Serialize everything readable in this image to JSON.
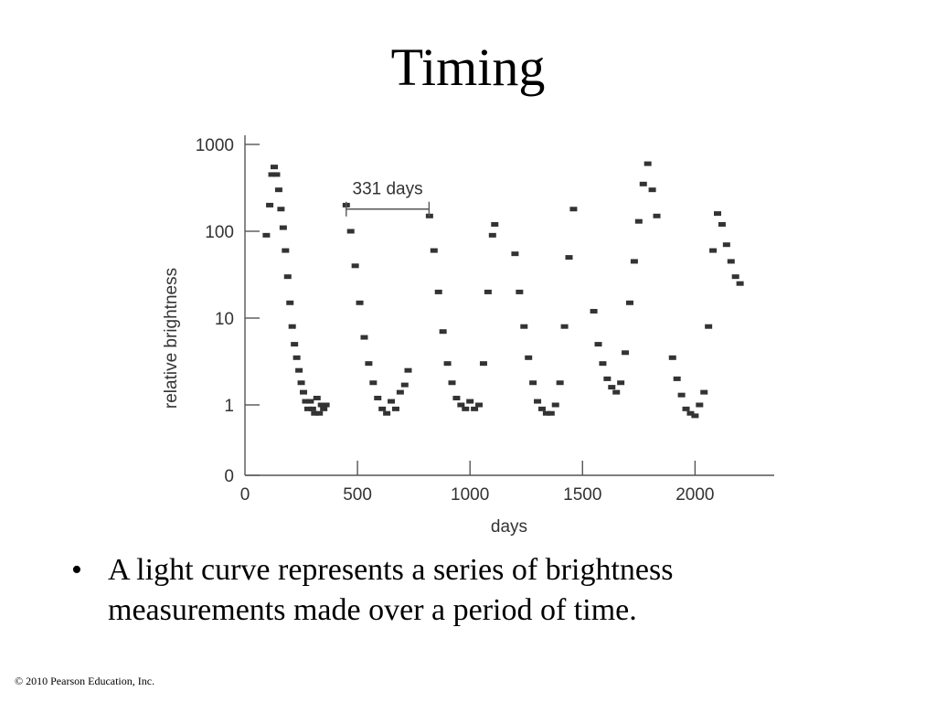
{
  "slide": {
    "title": "Timing",
    "bullet_marker": "•",
    "bullet": "A light curve represents a series of brightness measurements made over a period of time.",
    "copyright": "© 2010 Pearson Education, Inc."
  },
  "chart_data": {
    "type": "scatter",
    "title": "",
    "xlabel": "days",
    "ylabel": "relative brightness",
    "xlim": [
      0,
      2350
    ],
    "xticks": [
      0,
      500,
      1000,
      1500,
      2000
    ],
    "xtick_labels": [
      "0",
      "500",
      "1000",
      "1500",
      "2000"
    ],
    "y_scale": "log",
    "yticks": [
      0,
      1,
      10,
      100,
      1000
    ],
    "ytick_labels": [
      "0",
      "1",
      "10",
      "100",
      "1000"
    ],
    "grid": false,
    "marker_color": "#333333",
    "annotation": {
      "label": "331 days",
      "x_start": 450,
      "x_end": 818,
      "y": 180
    },
    "series": [
      {
        "x": [
          95,
          110,
          120,
          130,
          140,
          150,
          160,
          170,
          180,
          190,
          200,
          210,
          220,
          230,
          240,
          250,
          260,
          270,
          280,
          290,
          300,
          310,
          320,
          330,
          340,
          350,
          360,
          450,
          470,
          490,
          510,
          530,
          550,
          570,
          590,
          610,
          630,
          650,
          670,
          690,
          710,
          725,
          820,
          840,
          860,
          880,
          900,
          920,
          940,
          960,
          980,
          1000,
          1020,
          1040,
          1060,
          1080,
          1100,
          1110,
          1200,
          1220,
          1240,
          1260,
          1280,
          1300,
          1320,
          1340,
          1360,
          1380,
          1400,
          1420,
          1440,
          1460,
          1550,
          1570,
          1590,
          1610,
          1630,
          1650,
          1670,
          1690,
          1710,
          1730,
          1750,
          1770,
          1790,
          1810,
          1830,
          1900,
          1920,
          1940,
          1960,
          1980,
          2000,
          2020,
          2040,
          2060,
          2080,
          2100,
          2120,
          2140,
          2160,
          2180,
          2200
        ],
        "y": [
          90,
          200,
          450,
          550,
          450,
          300,
          180,
          110,
          60,
          30,
          15,
          8,
          5,
          3.5,
          2.5,
          1.8,
          1.4,
          1.1,
          0.9,
          1.1,
          0.9,
          0.8,
          1.2,
          0.8,
          1.0,
          0.9,
          1.0,
          200,
          100,
          40,
          15,
          6,
          3,
          1.8,
          1.2,
          0.9,
          0.8,
          1.1,
          0.9,
          1.4,
          1.7,
          2.5,
          150,
          60,
          20,
          7,
          3,
          1.8,
          1.2,
          1.0,
          0.9,
          1.1,
          0.9,
          1.0,
          3,
          20,
          90,
          120,
          55,
          20,
          8,
          3.5,
          1.8,
          1.1,
          0.9,
          0.8,
          0.8,
          1.0,
          1.8,
          8,
          50,
          180,
          12,
          5,
          3,
          2,
          1.6,
          1.4,
          1.8,
          4,
          15,
          45,
          130,
          350,
          600,
          300,
          150,
          3.5,
          2,
          1.3,
          0.9,
          0.8,
          0.75,
          1.0,
          1.4,
          8,
          60,
          160,
          120,
          70,
          45,
          30,
          25
        ]
      }
    ]
  }
}
